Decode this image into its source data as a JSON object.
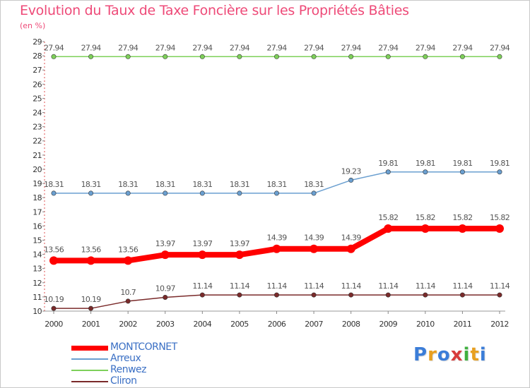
{
  "title": "Evolution du Taux de Taxe Foncière sur les Propriétés Bâties",
  "unit": "(en %)",
  "logo": {
    "text": "Proxiti",
    "letters": [
      {
        "ch": "P",
        "color": "#3b7dd8"
      },
      {
        "ch": "r",
        "color": "#e8a020"
      },
      {
        "ch": "o",
        "color": "#3b7dd8"
      },
      {
        "ch": "x",
        "color": "#d83b3b"
      },
      {
        "ch": "i",
        "color": "#3fb03f"
      },
      {
        "ch": "t",
        "color": "#e8a020"
      },
      {
        "ch": "i",
        "color": "#3b7dd8"
      }
    ]
  },
  "chart_data": {
    "type": "line",
    "title": "Evolution du Taux de Taxe Foncière sur les Propriétés Bâties",
    "ylabel": "(en %)",
    "xlabel": "",
    "x": [
      "2000",
      "2001",
      "2002",
      "2003",
      "2004",
      "2005",
      "2006",
      "2007",
      "2008",
      "2009",
      "2010",
      "2011",
      "2012"
    ],
    "ylim": [
      10,
      29
    ],
    "yticks": [
      10,
      11,
      12,
      13,
      14,
      15,
      16,
      17,
      18,
      19,
      20,
      21,
      22,
      23,
      24,
      25,
      26,
      27,
      28,
      29
    ],
    "grid": false,
    "legend_position": "bottom-left",
    "series": [
      {
        "name": "MONTCORNET",
        "color": "#ff0000",
        "width": 8,
        "values": [
          13.56,
          13.56,
          13.56,
          13.97,
          13.97,
          13.97,
          14.39,
          14.39,
          14.39,
          15.82,
          15.82,
          15.82,
          15.82
        ],
        "labels": [
          "13.56",
          "13.56",
          "13.56",
          "13.97",
          "13.97",
          "13.97",
          "14.39",
          "14.39",
          "14.39",
          "15.82",
          "15.82",
          "15.82",
          "15.82"
        ]
      },
      {
        "name": "Arreux",
        "color": "#6a9fd0",
        "width": 1.5,
        "values": [
          18.31,
          18.31,
          18.31,
          18.31,
          18.31,
          18.31,
          18.31,
          18.31,
          19.23,
          19.81,
          19.81,
          19.81,
          19.81
        ],
        "labels": [
          "18.31",
          "18.31",
          "18.31",
          "18.31",
          "18.31",
          "18.31",
          "18.31",
          "18.31",
          "19.23",
          "19.81",
          "19.81",
          "19.81",
          "19.81"
        ]
      },
      {
        "name": "Renwez",
        "color": "#7ed05a",
        "width": 1.5,
        "values": [
          27.94,
          27.94,
          27.94,
          27.94,
          27.94,
          27.94,
          27.94,
          27.94,
          27.94,
          27.94,
          27.94,
          27.94,
          27.94
        ],
        "labels": [
          "27.94",
          "27.94",
          "27.94",
          "27.94",
          "27.94",
          "27.94",
          "27.94",
          "27.94",
          "27.94",
          "27.94",
          "27.94",
          "27.94",
          "27.94"
        ]
      },
      {
        "name": "Cliron",
        "color": "#7a2a2a",
        "width": 1.5,
        "values": [
          10.19,
          10.19,
          10.7,
          10.97,
          11.14,
          11.14,
          11.14,
          11.14,
          11.14,
          11.14,
          11.14,
          11.14,
          11.14
        ],
        "labels": [
          "10.19",
          "10.19",
          "10.7",
          "10.97",
          "11.14",
          "11.14",
          "11.14",
          "11.14",
          "11.14",
          "11.14",
          "11.14",
          "11.14",
          "11.14"
        ]
      }
    ]
  }
}
